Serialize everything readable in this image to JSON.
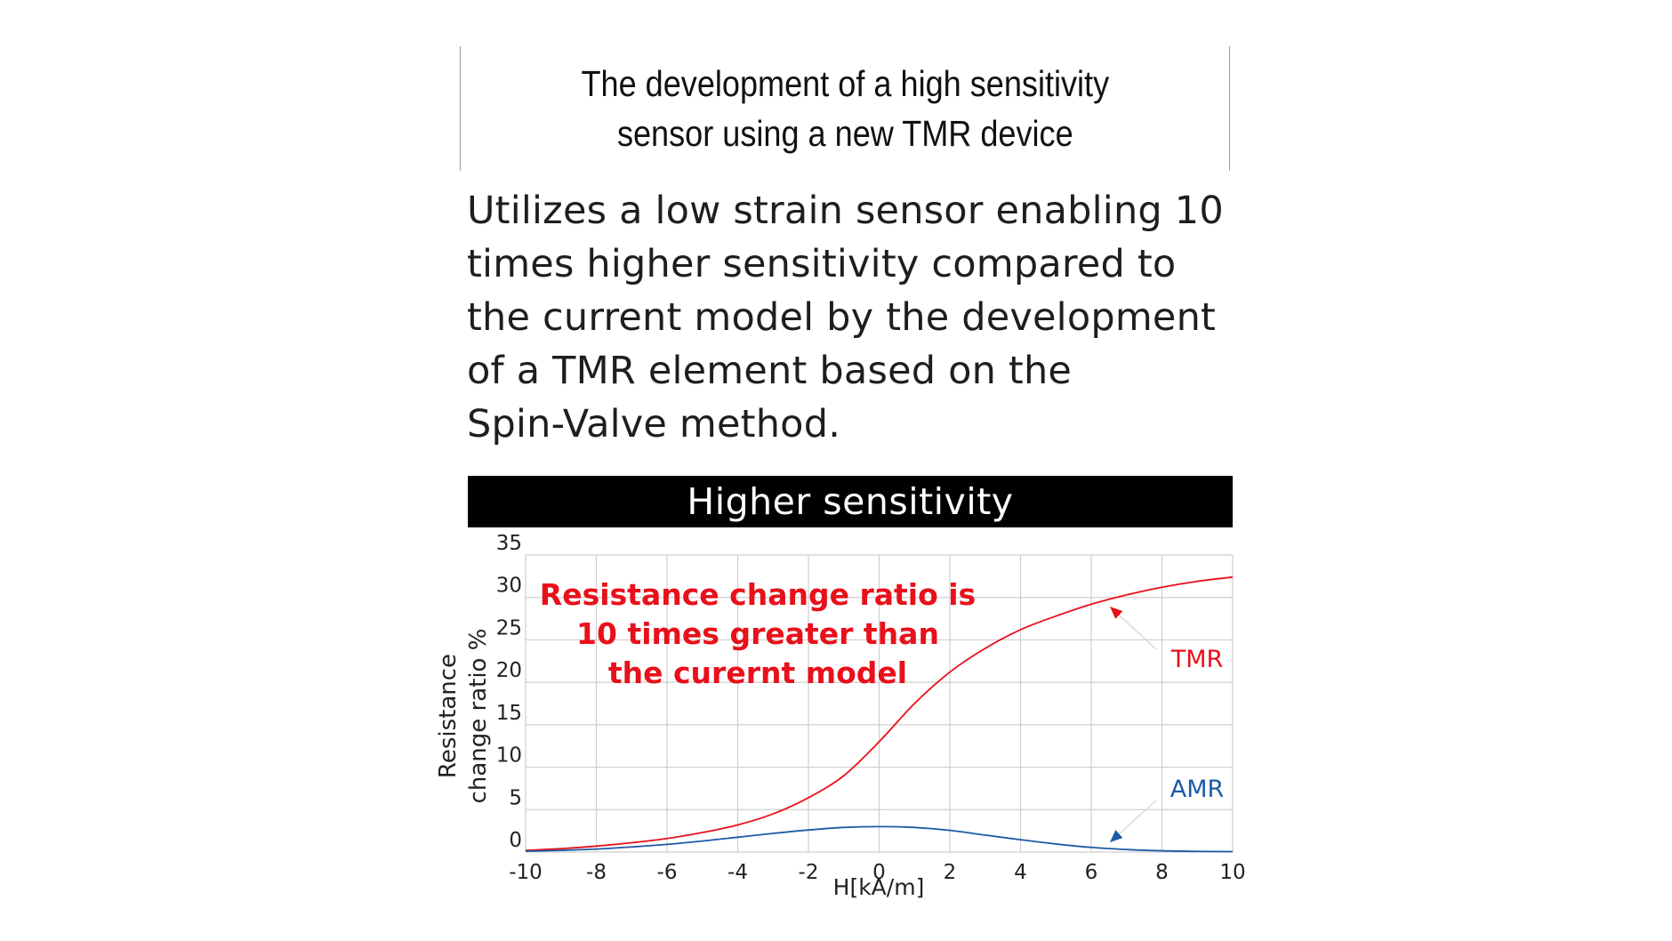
{
  "header": {
    "title": "The development of a high sensitivity\nsensor using a new TMR device"
  },
  "description": "Utilizes a low strain sensor enabling 10\ntimes higher sensitivity compared to\nthe current model by the development\nof a TMR element based on the\nSpin-Valve method.",
  "banner": {
    "label": "Higher sensitivity"
  },
  "chart_data": {
    "type": "line",
    "xlabel": "H[kA/m]",
    "ylabel": [
      "Resistance",
      "change ratio %"
    ],
    "xlim": [
      -10,
      10
    ],
    "ylim": [
      0,
      35
    ],
    "x_ticks": [
      -10,
      -8,
      -6,
      -4,
      -2,
      0,
      2,
      4,
      6,
      8,
      10
    ],
    "y_ticks": [
      0,
      5,
      10,
      15,
      20,
      25,
      30,
      35
    ],
    "grid": true,
    "annotation": [
      "Resistance change ratio is",
      "10 times greater than",
      "the curernt model"
    ],
    "series": [
      {
        "name": "TMR",
        "color": "#e8101a",
        "x": [
          -10,
          -9,
          -8,
          -7,
          -6,
          -5,
          -4,
          -3,
          -2,
          -1,
          0,
          1,
          2,
          3,
          4,
          5,
          6,
          7,
          8,
          9,
          10
        ],
        "y": [
          0.2,
          0.4,
          0.7,
          1.1,
          1.6,
          2.3,
          3.2,
          4.5,
          6.4,
          9.0,
          13.0,
          17.5,
          21.2,
          24.0,
          26.2,
          27.8,
          29.2,
          30.3,
          31.2,
          31.9,
          32.4
        ]
      },
      {
        "name": "AMR",
        "color": "#1d5ba6",
        "x": [
          -10,
          -9,
          -8,
          -7,
          -6,
          -5,
          -4,
          -3,
          -2,
          -1,
          0,
          1,
          2,
          3,
          4,
          5,
          6,
          7,
          8,
          9,
          10
        ],
        "y": [
          0.1,
          0.2,
          0.35,
          0.6,
          0.9,
          1.3,
          1.75,
          2.2,
          2.6,
          2.9,
          3.0,
          2.9,
          2.55,
          2.0,
          1.45,
          0.95,
          0.55,
          0.3,
          0.15,
          0.08,
          0.05
        ]
      }
    ]
  },
  "colors": {
    "tmr": "#e8101a",
    "amr": "#1d5ba6",
    "annotation": "#e8101a",
    "grid": "#cfcfcf",
    "banner_bg": "#000000"
  }
}
